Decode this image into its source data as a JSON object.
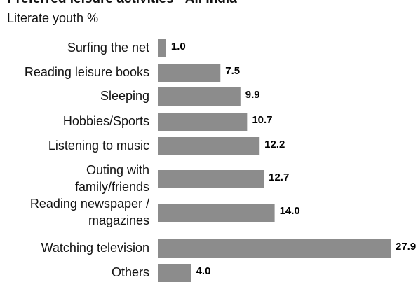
{
  "chart_data": {
    "type": "bar",
    "orientation": "horizontal",
    "title": "Preferred leisure activities - All India",
    "subtitle": "Literate youth %",
    "categories": [
      "Surfing the net",
      "Reading leisure books",
      "Sleeping",
      "Hobbies/Sports",
      "Listening to music",
      "Outing with family/friends",
      "Reading newspaper / magazines",
      "Watching television",
      "Others"
    ],
    "category_lines": [
      [
        "Surfing the net"
      ],
      [
        "Reading leisure books"
      ],
      [
        "Sleeping"
      ],
      [
        "Hobbies/Sports"
      ],
      [
        "Listening to music"
      ],
      [
        "Outing with",
        "family/friends"
      ],
      [
        "Reading newspaper /",
        "magazines"
      ],
      [
        "Watching television"
      ],
      [
        "Others"
      ]
    ],
    "values": [
      1.0,
      7.5,
      9.9,
      10.7,
      12.2,
      12.7,
      14.0,
      27.9,
      4.0
    ],
    "value_labels": [
      "1.0",
      "7.5",
      "9.9",
      "10.7",
      "12.2",
      "12.7",
      "14.0",
      "27.9",
      "4.0"
    ],
    "xlim": [
      0,
      27.9
    ],
    "bar_color": "#8c8c8c",
    "grid": false
  }
}
